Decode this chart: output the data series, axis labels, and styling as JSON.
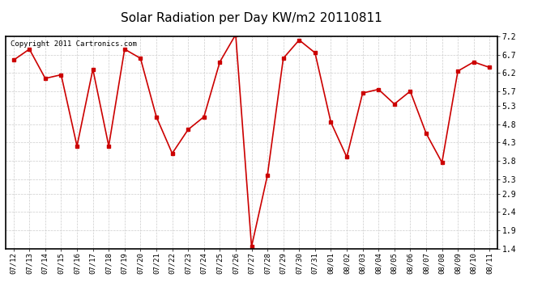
{
  "title": "Solar Radiation per Day KW/m2 20110811",
  "copyright_text": "Copyright 2011 Cartronics.com",
  "dates": [
    "07/12",
    "07/13",
    "07/14",
    "07/15",
    "07/16",
    "07/17",
    "07/18",
    "07/19",
    "07/20",
    "07/21",
    "07/22",
    "07/23",
    "07/24",
    "07/25",
    "07/26",
    "07/27",
    "07/28",
    "07/29",
    "07/30",
    "07/31",
    "08/01",
    "08/02",
    "08/03",
    "08/04",
    "08/05",
    "08/06",
    "08/07",
    "08/08",
    "08/09",
    "08/10",
    "08/11"
  ],
  "values": [
    6.55,
    6.85,
    6.05,
    6.15,
    4.2,
    6.3,
    4.2,
    6.85,
    6.6,
    5.0,
    4.0,
    4.65,
    5.0,
    6.5,
    7.25,
    1.45,
    3.4,
    6.6,
    7.1,
    6.75,
    4.85,
    3.9,
    5.65,
    5.75,
    5.35,
    5.7,
    4.55,
    3.75,
    6.25,
    6.5,
    6.35
  ],
  "line_color": "#cc0000",
  "marker": "s",
  "marker_size": 2.5,
  "line_width": 1.2,
  "ylim": [
    1.4,
    7.2
  ],
  "yticks": [
    1.4,
    1.9,
    2.4,
    2.9,
    3.3,
    3.8,
    4.3,
    4.8,
    5.3,
    5.7,
    6.2,
    6.7,
    7.2
  ],
  "background_color": "#ffffff",
  "plot_bg_color": "#ffffff",
  "grid_color": "#cccccc",
  "title_fontsize": 11,
  "copyright_fontsize": 6.5,
  "tick_fontsize": 6.5,
  "ytick_fontsize": 7
}
